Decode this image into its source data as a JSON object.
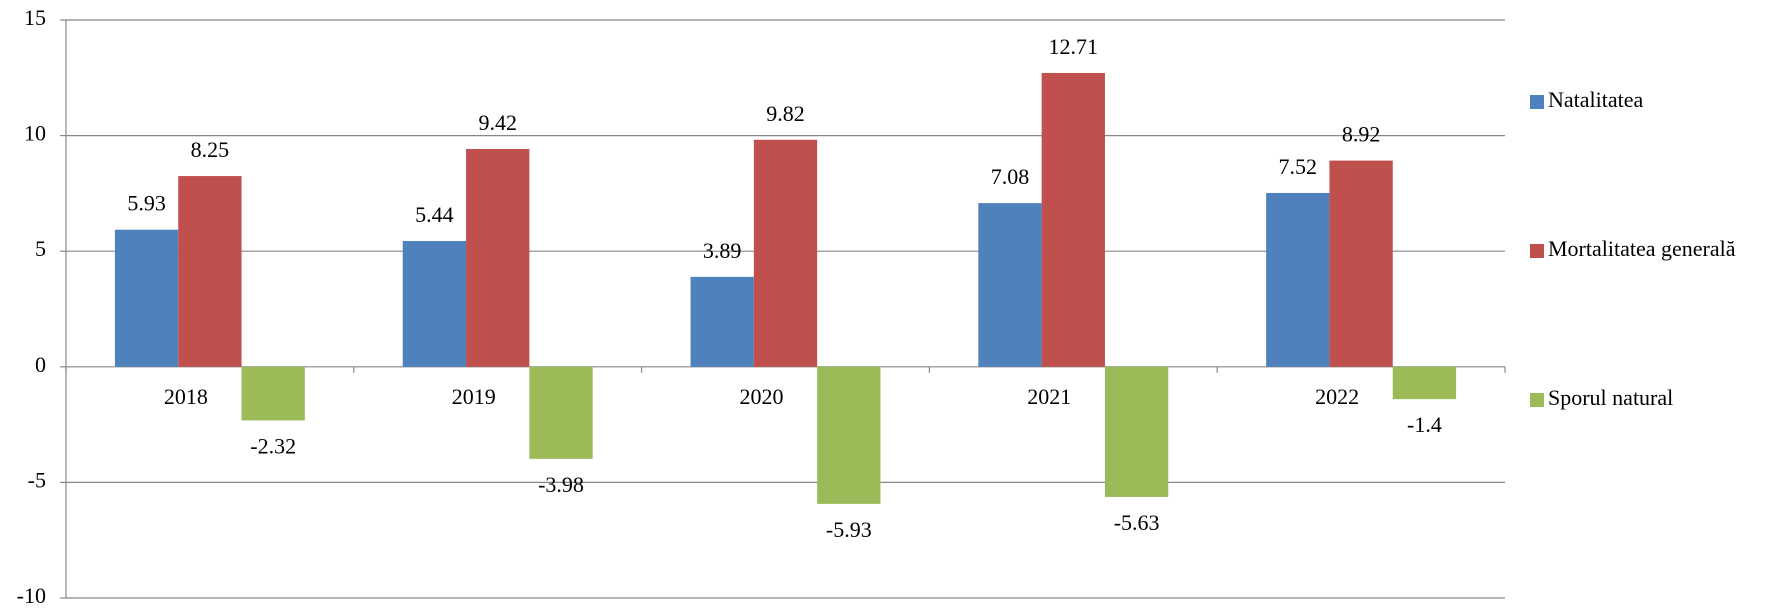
{
  "chart_data": {
    "type": "bar",
    "categories": [
      "2018",
      "2019",
      "2020",
      "2021",
      "2022"
    ],
    "series": [
      {
        "name": "Natalitatea",
        "color": "#4f81bd",
        "values": [
          5.93,
          5.44,
          3.89,
          7.08,
          7.52
        ]
      },
      {
        "name": "Mortalitatea generală",
        "color": "#c0504d",
        "values": [
          8.25,
          9.42,
          9.82,
          12.71,
          8.92
        ]
      },
      {
        "name": "Sporul natural",
        "color": "#9bbb59",
        "values": [
          -2.32,
          -3.98,
          -5.93,
          -5.63,
          -1.4
        ]
      }
    ],
    "ylim": [
      -10,
      15
    ],
    "yticks": [
      -10,
      -5,
      0,
      5,
      10,
      15
    ],
    "grid": true,
    "legend": "right"
  }
}
